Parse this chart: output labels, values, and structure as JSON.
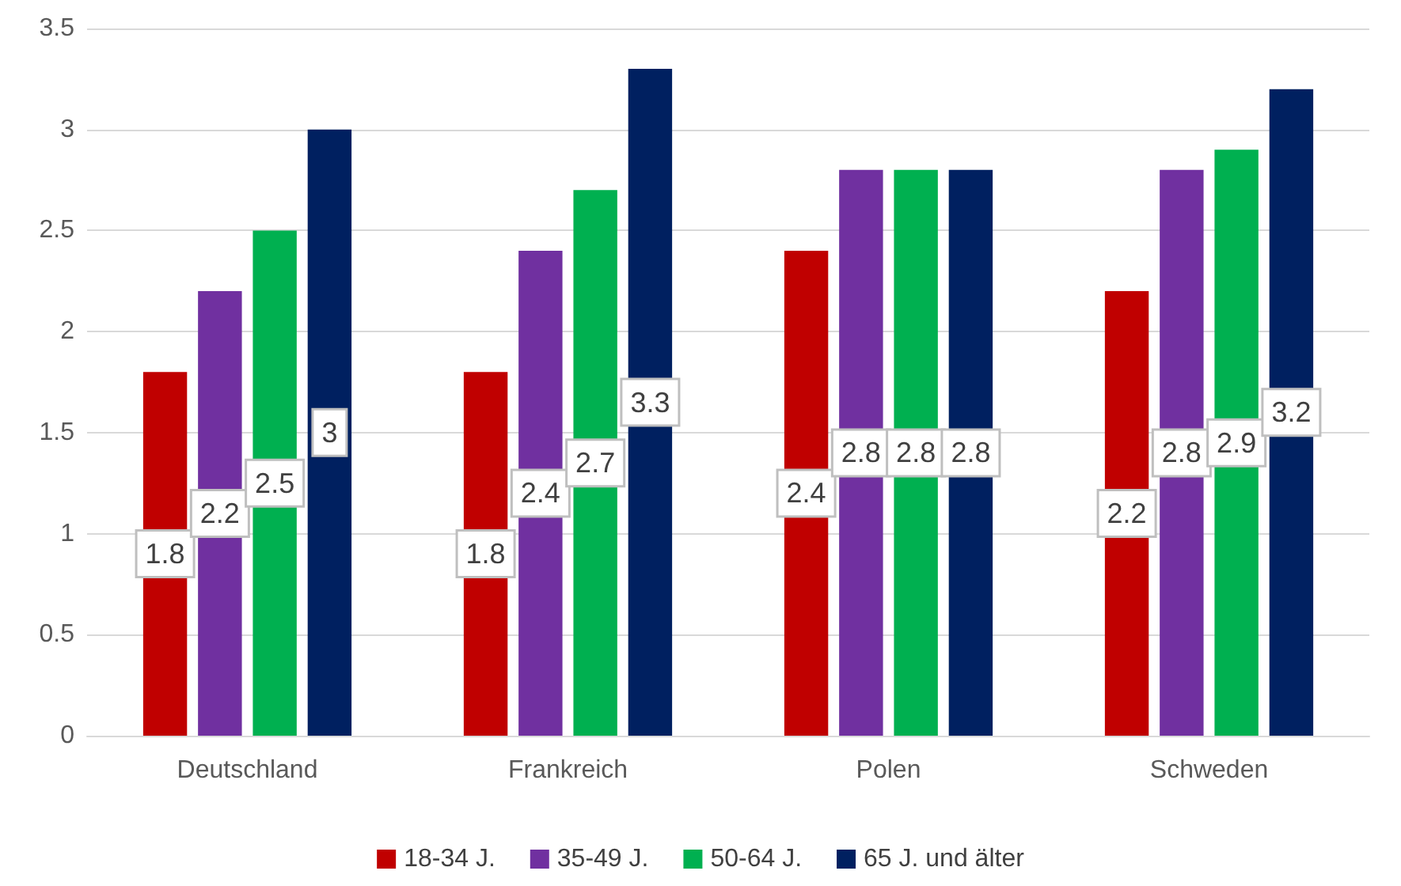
{
  "chart_data": {
    "type": "bar",
    "categories": [
      "Deutschland",
      "Frankreich",
      "Polen",
      "Schweden"
    ],
    "series": [
      {
        "name": "18-34 J.",
        "color": "#c00000",
        "values": [
          1.8,
          1.8,
          2.4,
          2.2
        ]
      },
      {
        "name": "35-49 J.",
        "color": "#7030a0",
        "values": [
          2.2,
          2.4,
          2.8,
          2.8
        ]
      },
      {
        "name": "50-64 J.",
        "color": "#00b050",
        "values": [
          2.5,
          2.7,
          2.8,
          2.9
        ]
      },
      {
        "name": "65 J. und älter",
        "color": "#002060",
        "values": [
          3,
          3.3,
          2.8,
          3.2
        ]
      }
    ],
    "ylim": [
      0,
      3.5
    ],
    "yticks": [
      0,
      0.5,
      1,
      1.5,
      2,
      2.5,
      3,
      3.5
    ],
    "grid": "y",
    "legend": "bottom",
    "data_labels": true
  }
}
